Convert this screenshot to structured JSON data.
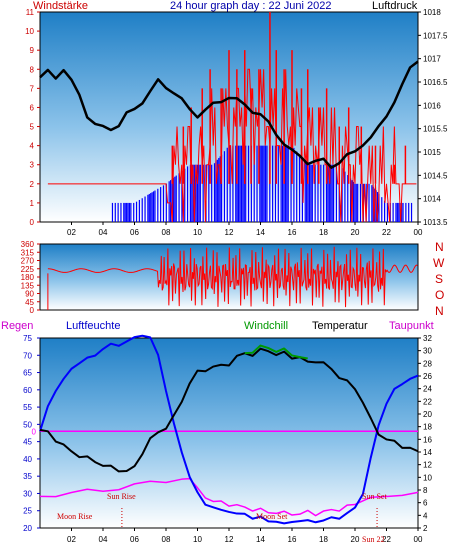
{
  "header": {
    "left_label": "Windstärke",
    "title": "24 hour graph day : 22 Juni 2022",
    "right_label": "Luftdruck"
  },
  "colors": {
    "wind": "#ff0000",
    "gust_bars": "#0000ff",
    "pressure": "#000000",
    "axis_left": "#cc0000",
    "axis_right": "#000000",
    "header_title": "#0000aa",
    "humidity": "#0000ff",
    "temperature": "#000000",
    "windchill": "#009900",
    "dewpoint": "#ff00ff",
    "rain_line": "#ff00ff",
    "sun_moon_text": "#cc0000"
  },
  "wind_direction_letters": [
    "N",
    "W",
    "S",
    "O",
    "N"
  ],
  "lower_header": {
    "regen": "Regen",
    "luftfeuchte": "Luftfeuchte",
    "windchill": "Windchill",
    "temperatur": "Temperatur",
    "taupunkt": "Taupunkt"
  },
  "annotations": {
    "sun_rise": "Sun Rise",
    "moon_rise": "Moon Rise",
    "moon_set": "Moon Set",
    "sun_set": "Sun Set",
    "sun_22": "Sun 22"
  },
  "chart_data": [
    {
      "type": "line",
      "name": "wind-pressure",
      "x_ticks": [
        "02",
        "04",
        "06",
        "08",
        "10",
        "12",
        "14",
        "16",
        "18",
        "20",
        "22",
        "00"
      ],
      "ylim_left": [
        0,
        11
      ],
      "y_ticks_left": [
        0,
        1,
        2,
        3,
        4,
        5,
        6,
        7,
        8,
        9,
        10,
        11
      ],
      "ylim_right": [
        1013.5,
        1018
      ],
      "y_ticks_right": [
        1013.5,
        1014,
        1014.5,
        1015,
        1015.5,
        1016,
        1016.5,
        1017,
        1017.5,
        1018
      ],
      "x_range_hours": [
        0,
        24
      ],
      "wind_base": [
        [
          0.5,
          2
        ],
        [
          1.5,
          2
        ],
        [
          2,
          2
        ],
        [
          3,
          2
        ],
        [
          4,
          2
        ],
        [
          5,
          2
        ],
        [
          6,
          2
        ],
        [
          7,
          2
        ],
        [
          8,
          2
        ],
        [
          9,
          3
        ],
        [
          10,
          3
        ],
        [
          11,
          4
        ],
        [
          12,
          5
        ],
        [
          13,
          6
        ],
        [
          14,
          6
        ],
        [
          15,
          5
        ],
        [
          16,
          5
        ],
        [
          17,
          4
        ],
        [
          18,
          4
        ],
        [
          19,
          3
        ],
        [
          20,
          3
        ],
        [
          21,
          2
        ],
        [
          22,
          2
        ],
        [
          23,
          2
        ],
        [
          24,
          2
        ]
      ],
      "wind_peaks": [
        [
          8.4,
          4
        ],
        [
          9.1,
          5
        ],
        [
          9.6,
          6
        ],
        [
          10.3,
          7
        ],
        [
          10.8,
          8
        ],
        [
          11.5,
          7
        ],
        [
          12.0,
          9
        ],
        [
          12.5,
          8
        ],
        [
          13.0,
          9
        ],
        [
          13.4,
          7
        ],
        [
          13.9,
          8
        ],
        [
          14.6,
          11
        ],
        [
          15.0,
          9
        ],
        [
          15.5,
          8
        ],
        [
          16.0,
          9
        ],
        [
          16.6,
          7
        ],
        [
          17.0,
          8
        ],
        [
          17.7,
          6
        ],
        [
          18.2,
          7
        ],
        [
          19.0,
          5
        ],
        [
          19.6,
          6
        ],
        [
          20.4,
          5
        ],
        [
          21.3,
          4
        ],
        [
          22.5,
          3
        ],
        [
          23.2,
          4
        ]
      ],
      "gust_blue_level": [
        [
          4.6,
          1
        ],
        [
          6.0,
          1
        ],
        [
          8.0,
          2
        ],
        [
          9.5,
          3
        ],
        [
          11,
          3
        ],
        [
          12,
          4
        ],
        [
          13,
          4
        ],
        [
          14,
          4
        ],
        [
          15,
          4
        ],
        [
          16,
          4
        ],
        [
          17,
          3
        ],
        [
          18,
          3
        ],
        [
          19,
          3
        ],
        [
          20,
          2
        ],
        [
          21,
          2
        ],
        [
          22,
          1
        ],
        [
          23,
          1
        ]
      ],
      "pressure": [
        [
          0,
          1016.6
        ],
        [
          0.5,
          1016.7
        ],
        [
          1,
          1016.6
        ],
        [
          1.5,
          1016.8
        ],
        [
          2,
          1016.5
        ],
        [
          2.5,
          1016.2
        ],
        [
          3,
          1015.8
        ],
        [
          3.5,
          1015.6
        ],
        [
          4,
          1015.5
        ],
        [
          4.5,
          1015.5
        ],
        [
          5,
          1015.6
        ],
        [
          5.5,
          1015.8
        ],
        [
          6,
          1015.9
        ],
        [
          6.5,
          1016.1
        ],
        [
          7,
          1016.3
        ],
        [
          7.5,
          1016.5
        ],
        [
          8,
          1016.4
        ],
        [
          8.5,
          1016.3
        ],
        [
          9,
          1016.1
        ],
        [
          9.5,
          1015.9
        ],
        [
          10,
          1015.8
        ],
        [
          10.5,
          1015.9
        ],
        [
          11,
          1016.0
        ],
        [
          11.5,
          1016.1
        ],
        [
          12,
          1016.2
        ],
        [
          12.5,
          1016.1
        ],
        [
          13,
          1016.0
        ],
        [
          13.5,
          1015.9
        ],
        [
          14,
          1015.8
        ],
        [
          14.5,
          1015.6
        ],
        [
          15,
          1015.4
        ],
        [
          15.5,
          1015.2
        ],
        [
          16,
          1015.0
        ],
        [
          16.5,
          1014.9
        ],
        [
          17,
          1014.8
        ],
        [
          17.5,
          1014.8
        ],
        [
          18,
          1014.8
        ],
        [
          18.5,
          1014.7
        ],
        [
          19,
          1014.8
        ],
        [
          19.5,
          1014.9
        ],
        [
          20,
          1015.0
        ],
        [
          20.5,
          1015.2
        ],
        [
          21,
          1015.3
        ],
        [
          21.5,
          1015.5
        ],
        [
          22,
          1015.8
        ],
        [
          22.5,
          1016.1
        ],
        [
          23,
          1016.4
        ],
        [
          23.5,
          1016.8
        ],
        [
          24,
          1017.0
        ]
      ]
    },
    {
      "type": "scatter",
      "name": "wind-direction",
      "x_ticks": [],
      "ylim": [
        0,
        360
      ],
      "y_ticks": [
        0,
        45,
        90,
        135,
        180,
        225,
        270,
        315,
        360
      ],
      "direction_samples": [
        [
          0.5,
          200
        ],
        [
          1,
          220
        ],
        [
          2,
          230
        ],
        [
          3,
          225
        ],
        [
          4,
          215
        ],
        [
          5,
          220
        ],
        [
          6,
          210
        ],
        [
          7,
          200
        ],
        [
          7.5,
          260
        ],
        [
          8,
          180
        ],
        [
          8.5,
          300
        ],
        [
          9,
          60
        ],
        [
          9.5,
          250
        ],
        [
          10,
          30
        ],
        [
          10.5,
          310
        ],
        [
          11,
          90
        ],
        [
          11.5,
          330
        ],
        [
          12,
          20
        ],
        [
          12.5,
          280
        ],
        [
          13,
          140
        ],
        [
          13.5,
          340
        ],
        [
          14,
          40
        ],
        [
          14.5,
          300
        ],
        [
          15,
          60
        ],
        [
          15.5,
          310
        ],
        [
          16,
          120
        ],
        [
          16.5,
          330
        ],
        [
          17,
          30
        ],
        [
          17.5,
          290
        ],
        [
          18,
          90
        ],
        [
          18.5,
          320
        ],
        [
          19,
          150
        ],
        [
          19.5,
          300
        ],
        [
          20,
          80
        ],
        [
          20.5,
          340
        ],
        [
          21,
          190
        ],
        [
          21.5,
          250
        ],
        [
          22,
          220
        ],
        [
          22.5,
          260
        ],
        [
          23,
          220
        ],
        [
          23.5,
          230
        ],
        [
          24,
          220
        ]
      ]
    },
    {
      "type": "line",
      "name": "humidity-temperature",
      "x_ticks": [
        "02",
        "04",
        "06",
        "08",
        "10",
        "12",
        "14",
        "16",
        "18",
        "20",
        "22",
        "00"
      ],
      "ylim_left": [
        20,
        75
      ],
      "y_ticks_left": [
        20,
        25,
        30,
        35,
        40,
        45,
        50,
        55,
        60,
        65,
        70,
        75
      ],
      "ylim_right": [
        2,
        32
      ],
      "y_ticks_right": [
        2,
        4,
        6,
        8,
        10,
        12,
        14,
        16,
        18,
        20,
        22,
        24,
        26,
        28,
        30,
        32
      ],
      "rain_value": 0,
      "humidity": [
        [
          0,
          48
        ],
        [
          0.5,
          55
        ],
        [
          1,
          60
        ],
        [
          1.5,
          63
        ],
        [
          2,
          66
        ],
        [
          2.5,
          68
        ],
        [
          3,
          69
        ],
        [
          3.5,
          70
        ],
        [
          4,
          72
        ],
        [
          4.5,
          73
        ],
        [
          5,
          73
        ],
        [
          5.5,
          74
        ],
        [
          6,
          75
        ],
        [
          6.5,
          76
        ],
        [
          7,
          75
        ],
        [
          7.5,
          70
        ],
        [
          8,
          60
        ],
        [
          8.5,
          50
        ],
        [
          9,
          42
        ],
        [
          9.5,
          35
        ],
        [
          10,
          30
        ],
        [
          10.5,
          27
        ],
        [
          11,
          26
        ],
        [
          11.5,
          25
        ],
        [
          12,
          25
        ],
        [
          12.5,
          24
        ],
        [
          13,
          24
        ],
        [
          13.5,
          23
        ],
        [
          14,
          23
        ],
        [
          14.5,
          22
        ],
        [
          15,
          22
        ],
        [
          15.5,
          21
        ],
        [
          16,
          22
        ],
        [
          16.5,
          22
        ],
        [
          17,
          22
        ],
        [
          17.5,
          22
        ],
        [
          18,
          22
        ],
        [
          18.5,
          23
        ],
        [
          19,
          23
        ],
        [
          19.5,
          24
        ],
        [
          20,
          26
        ],
        [
          20.5,
          30
        ],
        [
          21,
          40
        ],
        [
          21.5,
          50
        ],
        [
          22,
          56
        ],
        [
          22.5,
          60
        ],
        [
          23,
          62
        ],
        [
          23.5,
          63
        ],
        [
          24,
          64
        ]
      ],
      "temperature": [
        [
          0,
          17.5
        ],
        [
          0.5,
          17
        ],
        [
          1,
          16
        ],
        [
          1.5,
          15
        ],
        [
          2,
          14
        ],
        [
          2.5,
          13.5
        ],
        [
          3,
          13
        ],
        [
          3.5,
          12.5
        ],
        [
          4,
          12
        ],
        [
          4.5,
          11.5
        ],
        [
          5,
          11.2
        ],
        [
          5.5,
          11
        ],
        [
          6,
          11.5
        ],
        [
          6.5,
          14
        ],
        [
          7,
          16
        ],
        [
          7.5,
          17
        ],
        [
          8,
          18
        ],
        [
          8.5,
          19.5
        ],
        [
          9,
          22
        ],
        [
          9.5,
          25
        ],
        [
          10,
          26.5
        ],
        [
          10.5,
          27
        ],
        [
          11,
          27.5
        ],
        [
          11.5,
          27.5
        ],
        [
          12,
          28
        ],
        [
          12.5,
          29
        ],
        [
          13,
          29.5
        ],
        [
          13.5,
          29.5
        ],
        [
          14,
          30
        ],
        [
          14.5,
          30
        ],
        [
          15,
          29.5
        ],
        [
          15.5,
          29.5
        ],
        [
          16,
          29
        ],
        [
          16.5,
          29
        ],
        [
          17,
          28
        ],
        [
          17.5,
          28.5
        ],
        [
          18,
          28
        ],
        [
          18.5,
          27
        ],
        [
          19,
          26
        ],
        [
          19.5,
          25
        ],
        [
          20,
          24
        ],
        [
          20.5,
          22
        ],
        [
          21,
          19
        ],
        [
          21.5,
          17
        ],
        [
          22,
          16
        ],
        [
          22.5,
          15.5
        ],
        [
          23,
          15
        ],
        [
          23.5,
          14.5
        ],
        [
          24,
          14
        ]
      ],
      "windchill": [
        [
          13,
          29.5
        ],
        [
          13.5,
          30
        ],
        [
          14,
          30.5
        ],
        [
          14.5,
          30.5
        ],
        [
          15,
          30
        ],
        [
          15.5,
          30
        ],
        [
          16,
          29.5
        ],
        [
          16.5,
          29
        ],
        [
          17,
          28.5
        ]
      ],
      "dewpoint": [
        [
          0,
          7
        ],
        [
          1,
          7.3
        ],
        [
          2,
          7.5
        ],
        [
          3,
          7.8
        ],
        [
          4,
          8
        ],
        [
          5,
          8.3
        ],
        [
          6,
          8.7
        ],
        [
          7,
          9.2
        ],
        [
          8,
          9.5
        ],
        [
          9,
          9.8
        ],
        [
          9.5,
          10
        ],
        [
          10,
          8
        ],
        [
          10.5,
          7
        ],
        [
          11,
          6.2
        ],
        [
          11.5,
          6
        ],
        [
          12,
          5.8
        ],
        [
          12.5,
          5.5
        ],
        [
          13,
          5.2
        ],
        [
          13.5,
          5
        ],
        [
          14,
          4.8
        ],
        [
          14.5,
          4.5
        ],
        [
          15,
          4.5
        ],
        [
          15.5,
          4.3
        ],
        [
          16,
          4.3
        ],
        [
          16.5,
          4.2
        ],
        [
          17,
          4.5
        ],
        [
          17.5,
          4.3
        ],
        [
          18,
          4.5
        ],
        [
          18.5,
          4.8
        ],
        [
          19,
          5
        ],
        [
          19.5,
          5.3
        ],
        [
          20,
          5.8
        ],
        [
          21,
          6.5
        ],
        [
          22,
          7
        ],
        [
          23,
          7.5
        ],
        [
          24,
          7.5
        ]
      ]
    }
  ]
}
